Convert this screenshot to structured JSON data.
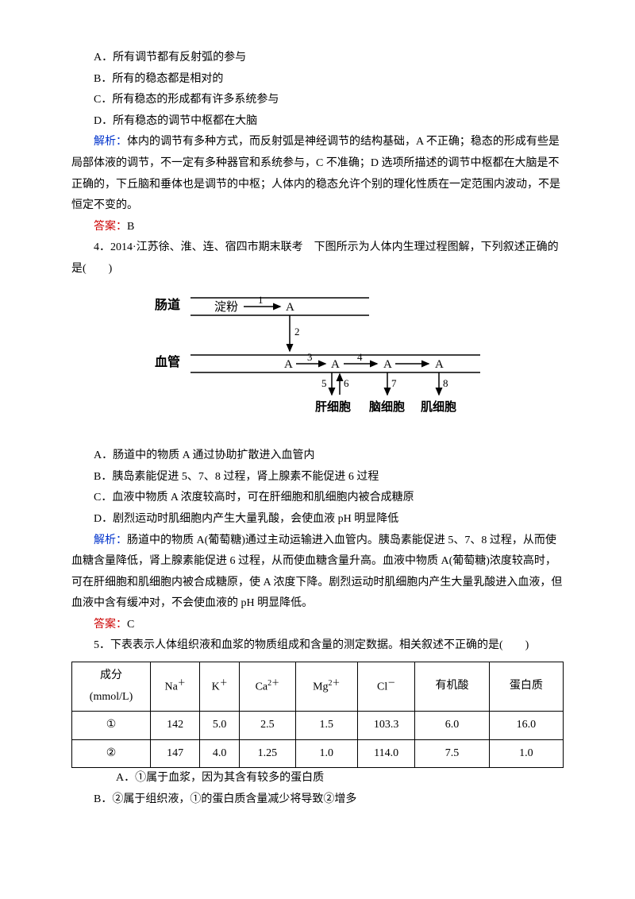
{
  "q3": {
    "opts": {
      "A": "A．所有调节都有反射弧的参与",
      "B": "B．所有的稳态都是相对的",
      "C": "C．所有稳态的形成都有许多系统参与",
      "D": "D．所有稳态的调节中枢都在大脑"
    },
    "analysis_label": "解析：",
    "analysis": "体内的调节有多种方式，而反射弧是神经调节的结构基础，A 不正确；稳态的形成有些是局部体液的调节，不一定有多种器官和系统参与，C 不准确；D 选项所描述的调节中枢都在大脑是不正确的，下丘脑和垂体也是调节的中枢；人体内的稳态允许个别的理化性质在一定范围内波动，不是恒定不变的。",
    "answer_label": "答案：",
    "answer": "B"
  },
  "q4": {
    "stem_pre": "4．",
    "stem_src": "2014·江苏徐、淮、连、宿四市期末联考",
    "stem_post": "　下图所示为人体内生理过程图解，下列叙述正确的是(　　)",
    "diagram": {
      "row1_label": "肠道",
      "row2_label": "血管",
      "starch": "淀粉",
      "A": "A",
      "n": {
        "1": "1",
        "2": "2",
        "3": "3",
        "4": "4",
        "5": "5",
        "6": "6",
        "7": "7",
        "8": "8"
      },
      "cells": {
        "liver": "肝细胞",
        "brain": "脑细胞",
        "muscle": "肌细胞"
      }
    },
    "opts": {
      "A": "A．肠道中的物质 A 通过协助扩散进入血管内",
      "B": "B．胰岛素能促进 5、7、8 过程，肾上腺素不能促进 6 过程",
      "C": "C．血液中物质 A 浓度较高时，可在肝细胞和肌细胞内被合成糖原",
      "D": "D．剧烈运动时肌细胞内产生大量乳酸，会使血液 pH 明显降低"
    },
    "analysis_label": "解析：",
    "analysis": "肠道中的物质 A(葡萄糖)通过主动运输进入血管内。胰岛素能促进 5、7、8 过程，从而使血糖含量降低，肾上腺素能促进 6 过程，从而使血糖含量升高。血液中物质 A(葡萄糖)浓度较高时，可在肝细胞和肌细胞内被合成糖原，使 A 浓度下降。剧烈运动时肌细胞内产生大量乳酸进入血液，但血液中含有缓冲对，不会使血液的 pH 明显降低。",
    "answer_label": "答案：",
    "answer": "C"
  },
  "q5": {
    "stem": "5．下表表示人体组织液和血浆的物质组成和含量的测定数据。相关叙述不正确的是(　　)",
    "table": {
      "header": [
        "成分\n(mmol/L)",
        "Na",
        "K",
        "Ca",
        "Mg",
        "Cl",
        "有机酸",
        "蛋白质"
      ],
      "sup": [
        "",
        "＋",
        "＋",
        "2＋",
        "2＋",
        "－",
        "",
        ""
      ],
      "rows": [
        [
          "①",
          "142",
          "5.0",
          "2.5",
          "1.5",
          "103.3",
          "6.0",
          "16.0"
        ],
        [
          "②",
          "147",
          "4.0",
          "1.25",
          "1.0",
          "114.0",
          "7.5",
          "1.0"
        ]
      ],
      "border_color": "#000000",
      "bg": "#ffffff",
      "fontsize": 14
    },
    "opts": {
      "A": "A．①属于血浆，因为其含有较多的蛋白质",
      "B": "B．②属于组织液，①的蛋白质含量减少将导致②增多"
    }
  }
}
